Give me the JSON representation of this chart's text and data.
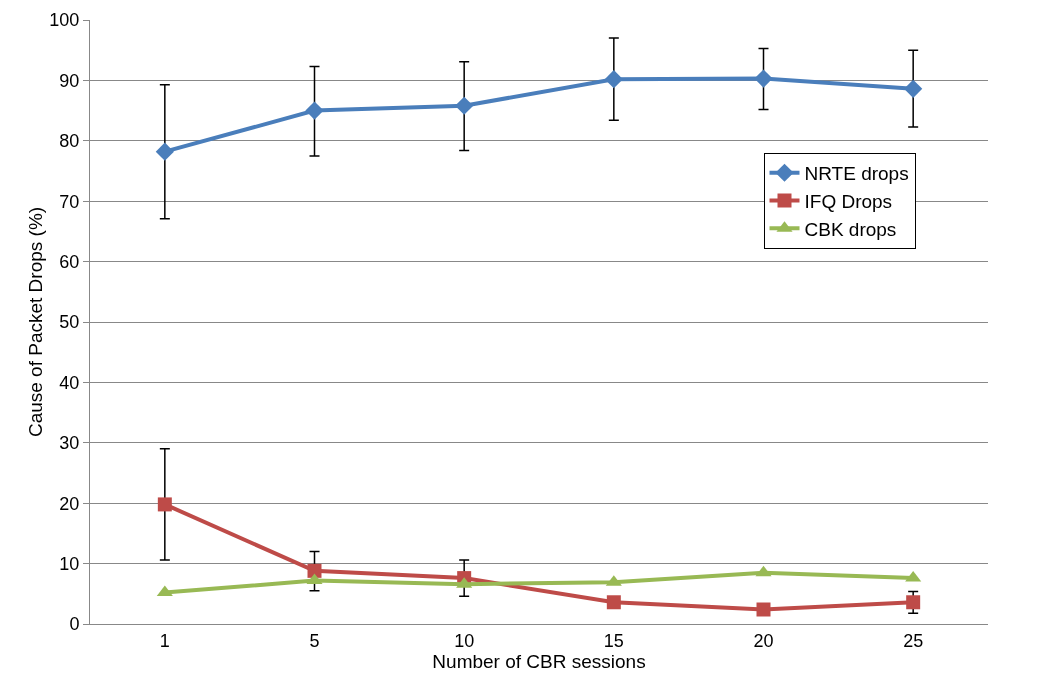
{
  "chart_data": {
    "type": "line",
    "xlabel": "Number of CBR sessions",
    "ylabel": "Cause of Packet Drops (%)",
    "categories": [
      "1",
      "5",
      "10",
      "15",
      "20",
      "25"
    ],
    "series": [
      {
        "name": "NRTE drops",
        "color": "#4a7ebb",
        "marker": "diamond",
        "values": [
          78.2,
          85,
          85.8,
          90.2,
          90.3,
          88.6
        ],
        "errors": [
          [
            67.1,
            89.3
          ],
          [
            77.5,
            92.3
          ],
          [
            78.4,
            93.1
          ],
          [
            83.4,
            97
          ],
          [
            85.2,
            95.3
          ],
          [
            82.3,
            95
          ]
        ]
      },
      {
        "name": "IFQ Drops",
        "color": "#be4b48",
        "marker": "square",
        "values": [
          19.8,
          8.8,
          7.6,
          3.6,
          2.4,
          3.6
        ],
        "errors": [
          [
            10.6,
            29
          ],
          [
            5.5,
            12
          ],
          [
            4.6,
            10.6
          ],
          null,
          null,
          [
            1.8,
            5.4
          ]
        ]
      },
      {
        "name": "CBK drops",
        "color": "#98b954",
        "marker": "triangle",
        "values": [
          5.2,
          7.2,
          6.6,
          6.9,
          8.5,
          7.6
        ]
      }
    ],
    "ylim": [
      0,
      100
    ],
    "yticks": [
      0,
      10,
      20,
      30,
      40,
      50,
      60,
      70,
      80,
      90,
      100
    ],
    "grid": "y",
    "legend": "right",
    "line_style": "solid"
  }
}
